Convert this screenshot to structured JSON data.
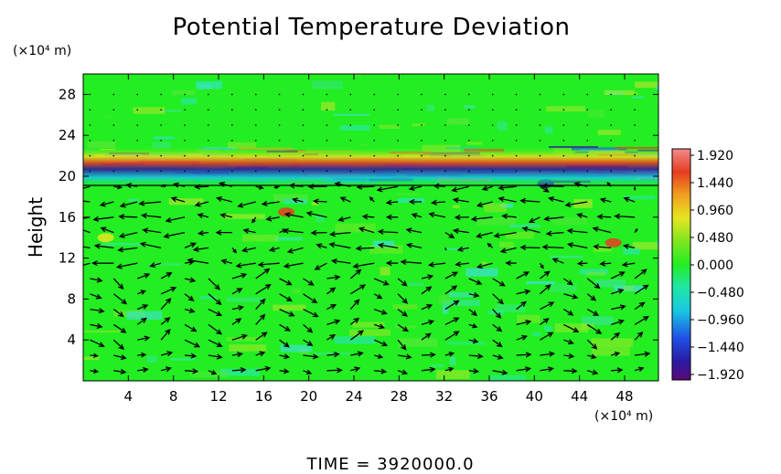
{
  "chart_data": {
    "type": "heatmap",
    "title": "Potential Temperature Deviation",
    "ylabel": "Height",
    "y_unit": "(×10⁴ m)",
    "x_unit": "(×10⁴ m)",
    "x_ticks": [
      4,
      8,
      12,
      16,
      20,
      24,
      28,
      32,
      36,
      40,
      44,
      48
    ],
    "y_ticks": [
      4,
      8,
      12,
      16,
      20,
      24,
      28
    ],
    "xlim": [
      0,
      51
    ],
    "ylim": [
      0,
      30
    ],
    "colorbar": {
      "ticks": [
        "1.920",
        "1.440",
        "0.960",
        "0.480",
        "0.000",
        "−0.480",
        "−0.960",
        "−1.440",
        "−1.920"
      ],
      "range": [
        -1.92,
        1.92
      ]
    },
    "background_color": "#22ee22",
    "annotation": "TIME = 3920000.0",
    "overlay": "wind vector arrows"
  }
}
